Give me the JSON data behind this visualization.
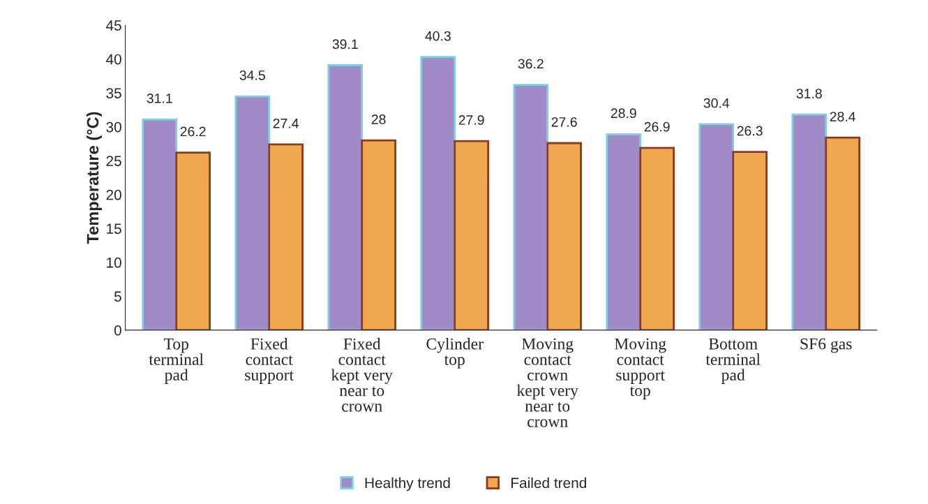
{
  "chart_data": {
    "type": "bar",
    "ylabel": "Temperature (°C)",
    "categories": [
      "Top terminal pad",
      "Fixed contact support",
      "Fixed contact kept very near to crown",
      "Cylinder top",
      "Moving contact crown kept very near to crown",
      "Moving contact support top",
      "Bottom terminal pad",
      "SF6 gas"
    ],
    "series": [
      {
        "name": "Healthy trend",
        "color": "#a08ac8",
        "values": [
          31.1,
          34.5,
          39.1,
          40.3,
          36.2,
          28.9,
          30.4,
          31.8
        ]
      },
      {
        "name": "Failed trend",
        "color": "#f0a850",
        "values": [
          26.2,
          27.4,
          28,
          27.9,
          27.6,
          26.9,
          26.3,
          28.4
        ]
      }
    ],
    "ylim": [
      0,
      45
    ],
    "yticks": [
      0,
      5,
      10,
      15,
      20,
      25,
      30,
      35,
      40,
      45
    ],
    "data_labels": true,
    "grid": false,
    "legend": "bottom"
  }
}
